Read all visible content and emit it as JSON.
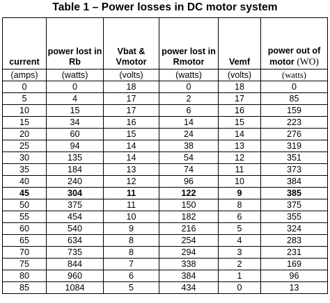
{
  "title": "Table 1 – Power losses in DC motor system",
  "columns": [
    {
      "header": "current",
      "unit": "(amps)"
    },
    {
      "header": "power lost in Rb",
      "unit": "(watts)"
    },
    {
      "header": "Vbat & Vmotor",
      "unit": "(volts)"
    },
    {
      "header": "power lost in Rmotor",
      "unit": "(watts)"
    },
    {
      "header": "Vemf",
      "unit": "(volts)"
    },
    {
      "header": "power out of motor",
      "header_suffix": "(WO)",
      "unit": "(watts)"
    }
  ],
  "highlight_row_index": 9,
  "rows": [
    [
      "0",
      "0",
      "18",
      "0",
      "18",
      "0"
    ],
    [
      "5",
      "4",
      "17",
      "2",
      "17",
      "85"
    ],
    [
      "10",
      "15",
      "17",
      "6",
      "16",
      "159"
    ],
    [
      "15",
      "34",
      "16",
      "14",
      "15",
      "223"
    ],
    [
      "20",
      "60",
      "15",
      "24",
      "14",
      "276"
    ],
    [
      "25",
      "94",
      "14",
      "38",
      "13",
      "319"
    ],
    [
      "30",
      "135",
      "14",
      "54",
      "12",
      "351"
    ],
    [
      "35",
      "184",
      "13",
      "74",
      "11",
      "373"
    ],
    [
      "40",
      "240",
      "12",
      "96",
      "10",
      "384"
    ],
    [
      "45",
      "304",
      "11",
      "122",
      "9",
      "385"
    ],
    [
      "50",
      "375",
      "11",
      "150",
      "8",
      "375"
    ],
    [
      "55",
      "454",
      "10",
      "182",
      "6",
      "355"
    ],
    [
      "60",
      "540",
      "9",
      "216",
      "5",
      "324"
    ],
    [
      "65",
      "634",
      "8",
      "254",
      "4",
      "283"
    ],
    [
      "70",
      "735",
      "8",
      "294",
      "3",
      "231"
    ],
    [
      "75",
      "844",
      "7",
      "338",
      "2",
      "169"
    ],
    [
      "80",
      "960",
      "6",
      "384",
      "1",
      "96"
    ],
    [
      "85",
      "1084",
      "5",
      "434",
      "0",
      "13"
    ]
  ]
}
